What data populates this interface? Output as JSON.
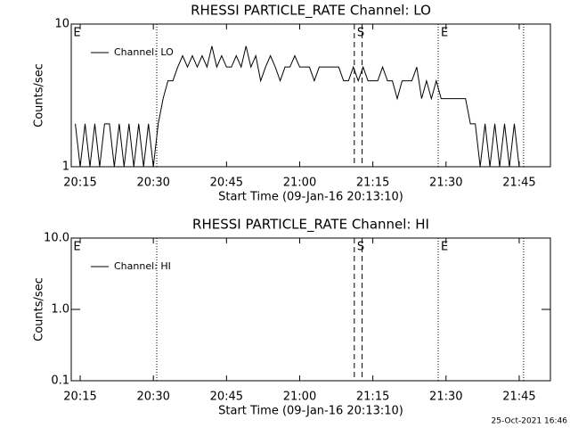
{
  "chart_data": [
    {
      "type": "line",
      "title": "RHESSI PARTICLE_RATE Channel: LO",
      "xlabel": "Start Time (09-Jan-16 20:13:10)",
      "ylabel": "Counts/sec",
      "log_y": true,
      "color": "#000000",
      "xlim": [
        1213.17,
        1311.4
      ],
      "ylim": [
        1,
        10
      ],
      "xticks": [
        {
          "value": 1215,
          "label": "20:15"
        },
        {
          "value": 1230,
          "label": "20:30"
        },
        {
          "value": 1245,
          "label": "20:45"
        },
        {
          "value": 1260,
          "label": "21:00"
        },
        {
          "value": 1275,
          "label": "21:15"
        },
        {
          "value": 1290,
          "label": "21:30"
        },
        {
          "value": 1305,
          "label": "21:45"
        }
      ],
      "yticks": [
        1,
        10
      ],
      "legend": "top-left",
      "annotations": [
        {
          "x": 1213.6,
          "label": "E"
        },
        {
          "x": 1230.7,
          "style": "dotted"
        },
        {
          "x": 1271.2,
          "label": "S",
          "style": "dashed"
        },
        {
          "x": 1272.8,
          "style": "dashed"
        },
        {
          "x": 1288.4,
          "label": "E",
          "style": "dotted"
        },
        {
          "x": 1305.9,
          "style": "dotted"
        }
      ],
      "x": [
        1214,
        1215,
        1216,
        1217,
        1218,
        1219,
        1220,
        1221,
        1222,
        1223,
        1224,
        1225,
        1226,
        1227,
        1228,
        1229,
        1230,
        1231,
        1232,
        1233,
        1234,
        1235,
        1236,
        1237,
        1238,
        1239,
        1240,
        1241,
        1242,
        1243,
        1244,
        1245,
        1246,
        1247,
        1248,
        1249,
        1250,
        1251,
        1252,
        1253,
        1254,
        1255,
        1256,
        1257,
        1258,
        1259,
        1260,
        1261,
        1262,
        1263,
        1264,
        1265,
        1266,
        1267,
        1268,
        1269,
        1270,
        1271,
        1272,
        1273,
        1274,
        1275,
        1276,
        1277,
        1278,
        1279,
        1280,
        1281,
        1282,
        1283,
        1284,
        1285,
        1286,
        1287,
        1288,
        1289,
        1290,
        1291,
        1292,
        1293,
        1294,
        1295,
        1296,
        1297,
        1298,
        1299,
        1300,
        1301,
        1302,
        1303,
        1304,
        1305
      ],
      "series": [
        {
          "name": "Channel: LO",
          "values": [
            2,
            1,
            2,
            1,
            2,
            1,
            2,
            2,
            1,
            2,
            1,
            2,
            1,
            2,
            1,
            2,
            1,
            2,
            3,
            4,
            4,
            5,
            6,
            5,
            6,
            5,
            6,
            5,
            7,
            5,
            6,
            5,
            5,
            6,
            5,
            7,
            5,
            6,
            4,
            5,
            6,
            5,
            4,
            5,
            5,
            6,
            5,
            5,
            5,
            4,
            5,
            5,
            5,
            5,
            5,
            4,
            4,
            5,
            4,
            5,
            4,
            4,
            4,
            5,
            4,
            4,
            3,
            4,
            4,
            4,
            5,
            3,
            4,
            3,
            4,
            3,
            3,
            3,
            3,
            3,
            3,
            2,
            2,
            1,
            2,
            1,
            2,
            1,
            2,
            1,
            2,
            1
          ]
        }
      ]
    },
    {
      "type": "line",
      "title": "RHESSI PARTICLE_RATE Channel: HI",
      "xlabel": "Start Time (09-Jan-16 20:13:10)",
      "ylabel": "Counts/sec",
      "log_y": true,
      "color": "#000000",
      "xlim": [
        1213.17,
        1311.4
      ],
      "ylim": [
        0.1,
        10
      ],
      "xticks": [
        {
          "value": 1215,
          "label": "20:15"
        },
        {
          "value": 1230,
          "label": "20:30"
        },
        {
          "value": 1245,
          "label": "20:45"
        },
        {
          "value": 1260,
          "label": "21:00"
        },
        {
          "value": 1275,
          "label": "21:15"
        },
        {
          "value": 1290,
          "label": "21:30"
        },
        {
          "value": 1305,
          "label": "21:45"
        }
      ],
      "yticks": [
        0.1,
        {
          "value": 1,
          "label": "1.0"
        },
        {
          "value": 10,
          "label": "10.0"
        }
      ],
      "legend": "top-left",
      "annotations": [
        {
          "x": 1213.6,
          "label": "E"
        },
        {
          "x": 1230.7,
          "style": "dotted"
        },
        {
          "x": 1271.2,
          "label": "S",
          "style": "dashed"
        },
        {
          "x": 1272.8,
          "style": "dashed"
        },
        {
          "x": 1288.4,
          "label": "E",
          "style": "dotted"
        },
        {
          "x": 1305.9,
          "style": "dotted"
        }
      ],
      "x": [],
      "series": [
        {
          "name": "Channel: HI",
          "values": []
        }
      ]
    }
  ],
  "footer": "25-Oct-2021 16:46"
}
